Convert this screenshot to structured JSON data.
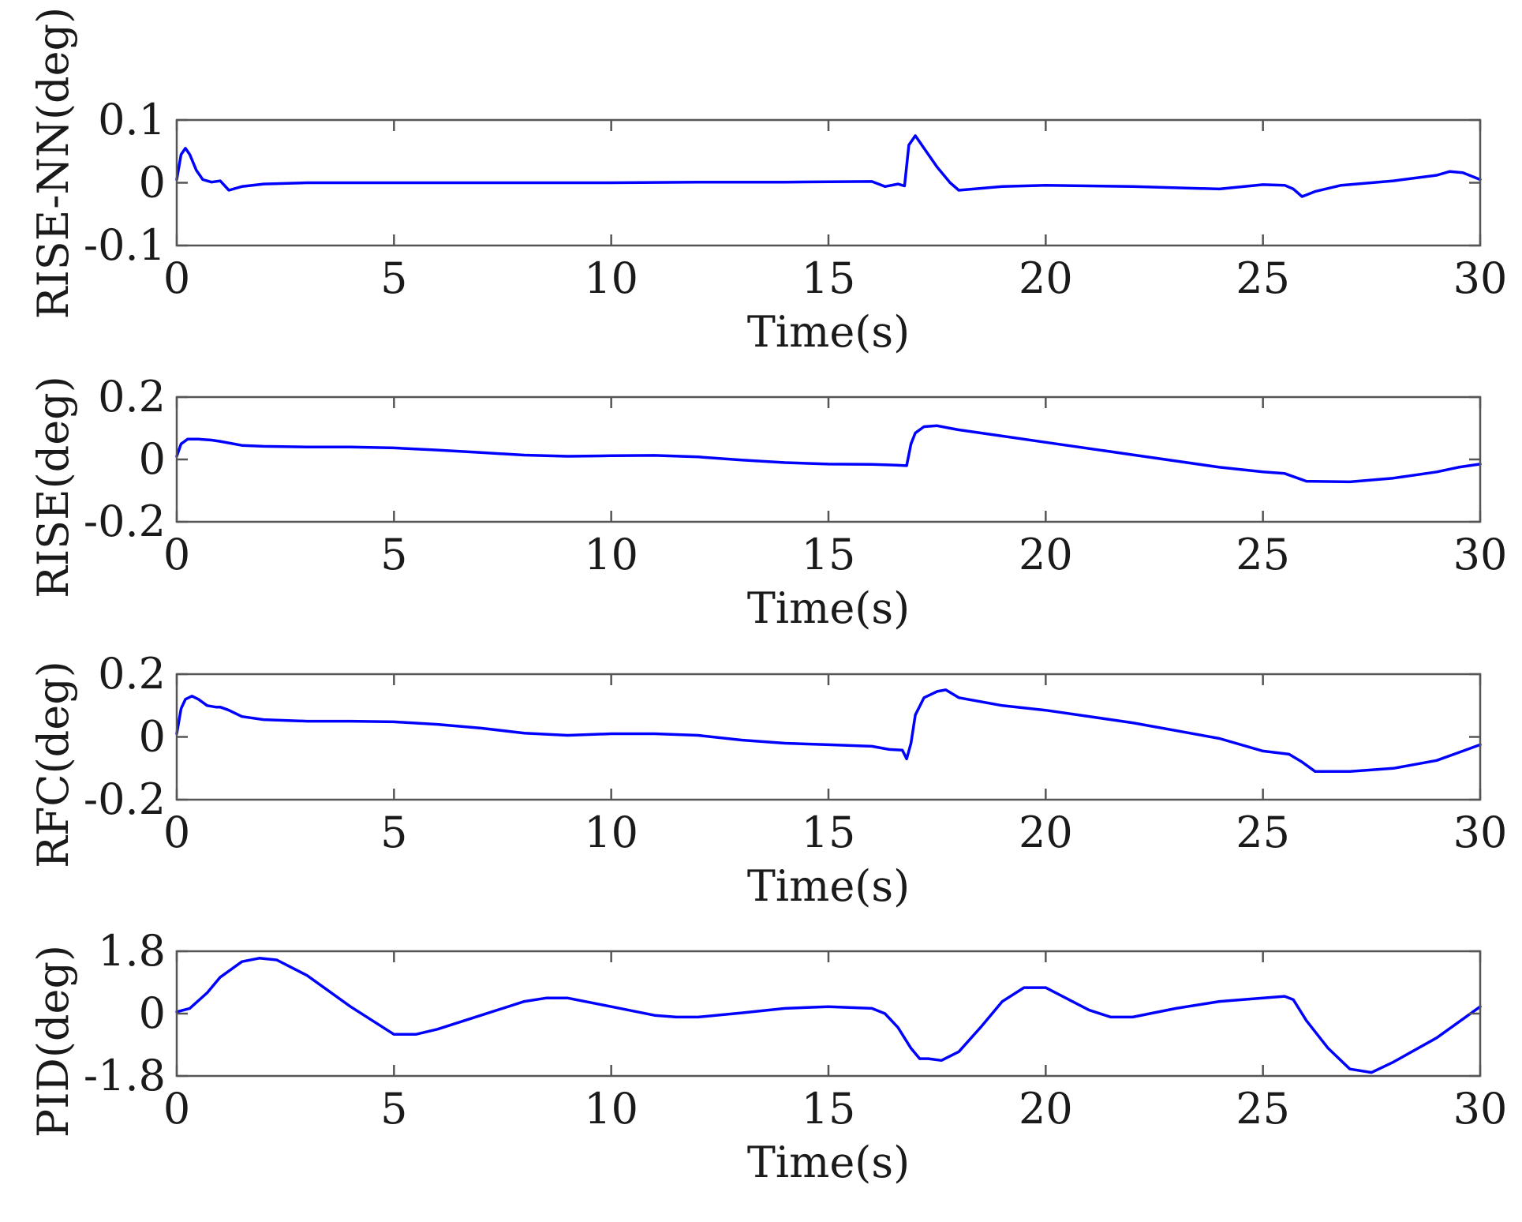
{
  "chart_data": [
    {
      "type": "line",
      "title": "",
      "xlabel": "Time(s)",
      "ylabel": "RISE-NN(deg)",
      "xlim": [
        0,
        30
      ],
      "ylim": [
        -0.1,
        0.1
      ],
      "xticks": [
        0,
        5,
        10,
        15,
        20,
        25,
        30
      ],
      "yticks": [
        0.1,
        0,
        -0.1
      ],
      "yticklabels": [
        "0.1",
        "0",
        "-0.1"
      ],
      "grid": false,
      "series": [
        {
          "color": "#0000ff",
          "x": [
            0,
            0.1,
            0.2,
            0.3,
            0.45,
            0.6,
            0.8,
            1.0,
            1.2,
            1.5,
            2.0,
            3,
            5,
            8,
            10,
            12,
            14,
            16.0,
            16.3,
            16.6,
            16.75,
            16.85,
            17.0,
            17.2,
            17.5,
            17.8,
            18.0,
            19,
            20,
            22,
            24,
            25,
            25.5,
            25.7,
            25.9,
            26.2,
            26.8,
            28,
            29,
            29.3,
            29.6,
            30
          ],
          "y": [
            0.005,
            0.045,
            0.055,
            0.045,
            0.02,
            0.005,
            0.001,
            0.003,
            -0.012,
            -0.006,
            -0.002,
            0.0,
            0.0,
            0.0,
            0.0,
            0.001,
            0.001,
            0.002,
            -0.006,
            -0.002,
            -0.005,
            0.06,
            0.075,
            0.055,
            0.025,
            0.0,
            -0.012,
            -0.006,
            -0.004,
            -0.006,
            -0.01,
            -0.003,
            -0.004,
            -0.01,
            -0.022,
            -0.014,
            -0.004,
            0.003,
            0.012,
            0.018,
            0.016,
            0.005
          ]
        }
      ]
    },
    {
      "type": "line",
      "title": "",
      "xlabel": "Time(s)",
      "ylabel": "RISE(deg)",
      "xlim": [
        0,
        30
      ],
      "ylim": [
        -0.2,
        0.2
      ],
      "xticks": [
        0,
        5,
        10,
        15,
        20,
        25,
        30
      ],
      "yticks": [
        0.2,
        0,
        -0.2
      ],
      "yticklabels": [
        "0.2",
        "0",
        "-0.2"
      ],
      "grid": false,
      "series": [
        {
          "color": "#0000ff",
          "x": [
            0,
            0.1,
            0.25,
            0.5,
            0.8,
            1.0,
            1.5,
            2,
            3,
            4,
            5,
            6,
            7,
            8,
            9,
            10,
            11,
            12,
            13,
            14,
            15,
            16,
            16.5,
            16.8,
            16.9,
            17.0,
            17.2,
            17.5,
            17.8,
            18,
            19,
            20,
            22,
            24,
            25,
            25.5,
            25.8,
            26,
            27,
            28,
            29,
            29.5,
            30
          ],
          "y": [
            0.01,
            0.05,
            0.065,
            0.065,
            0.062,
            0.058,
            0.045,
            0.042,
            0.04,
            0.04,
            0.037,
            0.03,
            0.022,
            0.014,
            0.01,
            0.012,
            0.013,
            0.008,
            -0.002,
            -0.01,
            -0.015,
            -0.016,
            -0.018,
            -0.02,
            0.05,
            0.085,
            0.105,
            0.108,
            0.1,
            0.095,
            0.075,
            0.055,
            0.015,
            -0.025,
            -0.04,
            -0.045,
            -0.06,
            -0.07,
            -0.072,
            -0.06,
            -0.04,
            -0.025,
            -0.015
          ]
        }
      ]
    },
    {
      "type": "line",
      "title": "",
      "xlabel": "Time(s)",
      "ylabel": "RFC(deg)",
      "xlim": [
        0,
        30
      ],
      "ylim": [
        -0.2,
        0.2
      ],
      "xticks": [
        0,
        5,
        10,
        15,
        20,
        25,
        30
      ],
      "yticks": [
        0.2,
        0,
        -0.2
      ],
      "yticklabels": [
        "0.2",
        "0",
        "-0.2"
      ],
      "grid": false,
      "series": [
        {
          "color": "#0000ff",
          "x": [
            0,
            0.1,
            0.2,
            0.35,
            0.5,
            0.7,
            0.9,
            1.0,
            1.2,
            1.5,
            2,
            3,
            4,
            5,
            6,
            7,
            8,
            9,
            10,
            11,
            12,
            13,
            14,
            15,
            16,
            16.4,
            16.7,
            16.8,
            16.9,
            17.0,
            17.2,
            17.5,
            17.7,
            18,
            19,
            20,
            22,
            24,
            25,
            25.6,
            25.9,
            26.2,
            27,
            28,
            29,
            29.5,
            30
          ],
          "y": [
            0.01,
            0.09,
            0.12,
            0.13,
            0.12,
            0.1,
            0.095,
            0.095,
            0.085,
            0.065,
            0.055,
            0.05,
            0.05,
            0.048,
            0.04,
            0.028,
            0.012,
            0.005,
            0.01,
            0.01,
            0.005,
            -0.01,
            -0.02,
            -0.025,
            -0.03,
            -0.04,
            -0.042,
            -0.07,
            -0.02,
            0.07,
            0.125,
            0.145,
            0.15,
            0.125,
            0.1,
            0.085,
            0.045,
            -0.005,
            -0.045,
            -0.055,
            -0.08,
            -0.11,
            -0.11,
            -0.1,
            -0.075,
            -0.05,
            -0.025
          ]
        }
      ]
    },
    {
      "type": "line",
      "title": "",
      "xlabel": "Time(s)",
      "ylabel": "PID(deg)",
      "xlim": [
        0,
        30
      ],
      "ylim": [
        -1.8,
        1.8
      ],
      "xticks": [
        0,
        5,
        10,
        15,
        20,
        25,
        30
      ],
      "yticks": [
        1.8,
        0,
        -1.8
      ],
      "yticklabels": [
        "1.8",
        "0",
        "-1.8"
      ],
      "grid": false,
      "series": [
        {
          "color": "#0000ff",
          "x": [
            0,
            0.3,
            0.7,
            1.0,
            1.5,
            1.9,
            2.3,
            3,
            4,
            5,
            5.5,
            6,
            7,
            8,
            8.5,
            9,
            10,
            11,
            11.5,
            12,
            13,
            14,
            15,
            16,
            16.3,
            16.6,
            16.9,
            17.1,
            17.3,
            17.6,
            18,
            18.5,
            19,
            19.5,
            20,
            21,
            21.5,
            22,
            23,
            24,
            25,
            25.5,
            25.7,
            26,
            26.5,
            27,
            27.5,
            28,
            29,
            30
          ],
          "y": [
            0.05,
            0.15,
            0.6,
            1.05,
            1.5,
            1.6,
            1.55,
            1.1,
            0.2,
            -0.6,
            -0.6,
            -0.45,
            -0.05,
            0.35,
            0.45,
            0.45,
            0.2,
            -0.05,
            -0.1,
            -0.1,
            0.02,
            0.15,
            0.2,
            0.15,
            0.0,
            -0.4,
            -1.0,
            -1.3,
            -1.3,
            -1.35,
            -1.1,
            -0.4,
            0.35,
            0.75,
            0.75,
            0.1,
            -0.1,
            -0.1,
            0.15,
            0.35,
            0.45,
            0.5,
            0.4,
            -0.2,
            -1.0,
            -1.6,
            -1.7,
            -1.4,
            -0.7,
            0.2
          ]
        }
      ]
    }
  ]
}
